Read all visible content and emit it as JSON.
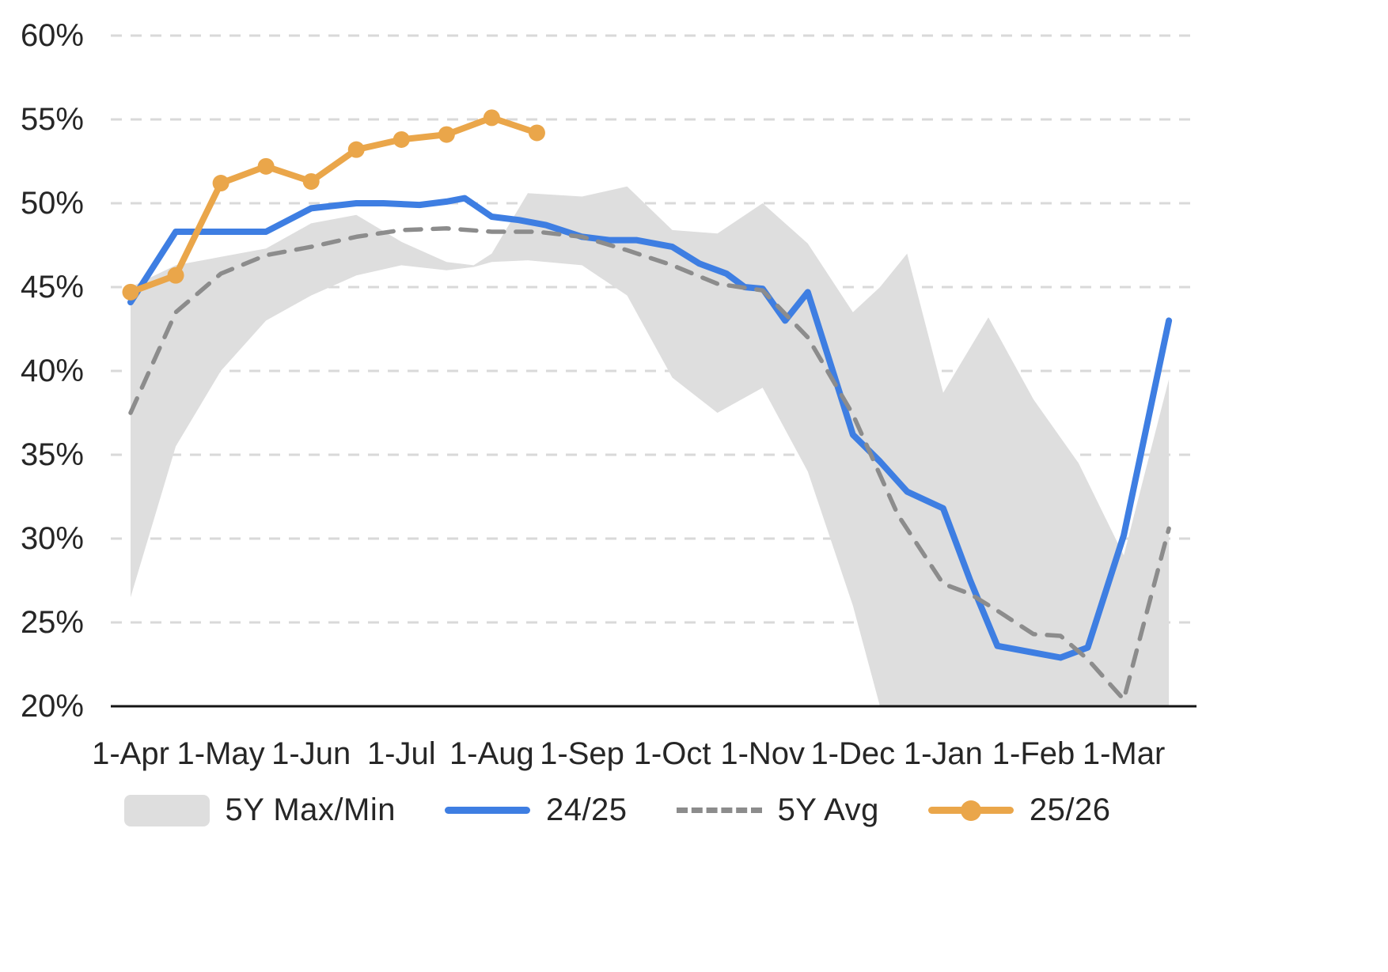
{
  "chart_data": {
    "type": "line",
    "title": "",
    "xlabel": "",
    "ylabel": "",
    "ylim": [
      20,
      60
    ],
    "grid": true,
    "legend_position": "bottom",
    "colors": {
      "blue": "#3e7ee2",
      "orange": "#eaa64a",
      "band": "#dedede",
      "avg": "#8c8c8c",
      "grid": "#d9d9d9",
      "axis": "#141414",
      "text": "#262626"
    },
    "y_ticks": [
      {
        "v": 60,
        "label": "60%"
      },
      {
        "v": 55,
        "label": "55%"
      },
      {
        "v": 50,
        "label": "50%"
      },
      {
        "v": 45,
        "label": "45%"
      },
      {
        "v": 40,
        "label": "40%"
      },
      {
        "v": 35,
        "label": "35%"
      },
      {
        "v": 30,
        "label": "30%"
      },
      {
        "v": 25,
        "label": "25%"
      },
      {
        "v": 20,
        "label": "20%"
      }
    ],
    "x_ticks": [
      "1-Apr",
      "1-May",
      "1-Jun",
      "1-Jul",
      "1-Aug",
      "1-Sep",
      "1-Oct",
      "1-Nov",
      "1-Dec",
      "1-Jan",
      "1-Feb",
      "1-Mar"
    ],
    "x_unit": "months from 1-Apr (t=0 is 1-Apr, t=11 is 1-Mar)",
    "band": {
      "name": "5Y Max/Min",
      "t": [
        0,
        0.5,
        1,
        1.5,
        2,
        2.5,
        3,
        3.5,
        3.8,
        4,
        4.4,
        5,
        5.5,
        6,
        6.5,
        7,
        7.5,
        8,
        8.3,
        8.6,
        9,
        9.5,
        10,
        10.5,
        11,
        11.5
      ],
      "max": [
        45.0,
        46.3,
        46.8,
        47.3,
        48.8,
        49.3,
        47.7,
        46.5,
        46.3,
        47.0,
        50.6,
        50.4,
        51.0,
        48.4,
        48.2,
        50.0,
        47.6,
        43.5,
        45.0,
        47.0,
        38.7,
        43.2,
        38.3,
        34.5,
        29.0,
        39.5
      ],
      "min": [
        26.5,
        35.5,
        40.0,
        43.0,
        44.5,
        45.7,
        46.3,
        46.0,
        46.2,
        46.5,
        46.6,
        46.3,
        44.5,
        39.6,
        37.5,
        39.0,
        34.0,
        26.0,
        20.0,
        20.0,
        20.0,
        20.0,
        20.0,
        20.0,
        20.0,
        20.0
      ]
    },
    "series": [
      {
        "name": "24/25",
        "style": "solid",
        "color_key": "blue",
        "t": [
          0,
          0.5,
          1,
          1.5,
          2,
          2.5,
          2.8,
          3.2,
          3.5,
          3.7,
          4,
          4.3,
          4.6,
          5,
          5.3,
          5.6,
          6,
          6.3,
          6.6,
          6.8,
          7,
          7.25,
          7.5,
          8,
          8.3,
          8.6,
          9,
          9.3,
          9.6,
          10,
          10.3,
          10.6,
          11,
          11.5
        ],
        "values": [
          44.1,
          48.3,
          48.3,
          48.3,
          49.7,
          50.0,
          50.0,
          49.9,
          50.1,
          50.3,
          49.2,
          49.0,
          48.7,
          48.0,
          47.8,
          47.8,
          47.4,
          46.4,
          45.8,
          45.0,
          44.9,
          43.0,
          44.7,
          36.2,
          34.6,
          32.8,
          31.8,
          27.5,
          23.6,
          23.2,
          22.9,
          23.5,
          30.2,
          43.0
        ]
      },
      {
        "name": "5Y Avg",
        "style": "dashed",
        "color_key": "avg",
        "t": [
          0,
          0.5,
          1,
          1.5,
          2,
          2.5,
          3,
          3.5,
          4,
          4.5,
          5,
          5.5,
          6,
          6.5,
          7,
          7.5,
          8,
          8.5,
          9,
          9.3,
          9.6,
          10,
          10.3,
          10.6,
          11,
          11.5
        ],
        "values": [
          37.5,
          43.5,
          45.8,
          46.9,
          47.4,
          48.0,
          48.4,
          48.5,
          48.3,
          48.3,
          48.0,
          47.2,
          46.3,
          45.2,
          44.8,
          42.0,
          37.4,
          31.4,
          27.3,
          26.7,
          25.7,
          24.3,
          24.2,
          22.8,
          20.4,
          30.6
        ]
      },
      {
        "name": "25/26",
        "style": "solid-markers",
        "color_key": "orange",
        "t": [
          0,
          0.5,
          1,
          1.5,
          2,
          2.5,
          3,
          3.5,
          4,
          4.5
        ],
        "values": [
          44.7,
          45.7,
          51.2,
          52.2,
          51.3,
          53.2,
          53.8,
          54.1,
          55.1,
          54.2
        ]
      }
    ],
    "legend": [
      {
        "label": "5Y Max/Min",
        "swatch": "band"
      },
      {
        "label": "24/25",
        "swatch": "blue-line"
      },
      {
        "label": "5Y Avg",
        "swatch": "dashed-line"
      },
      {
        "label": "25/26",
        "swatch": "orange-line-dot"
      }
    ]
  }
}
